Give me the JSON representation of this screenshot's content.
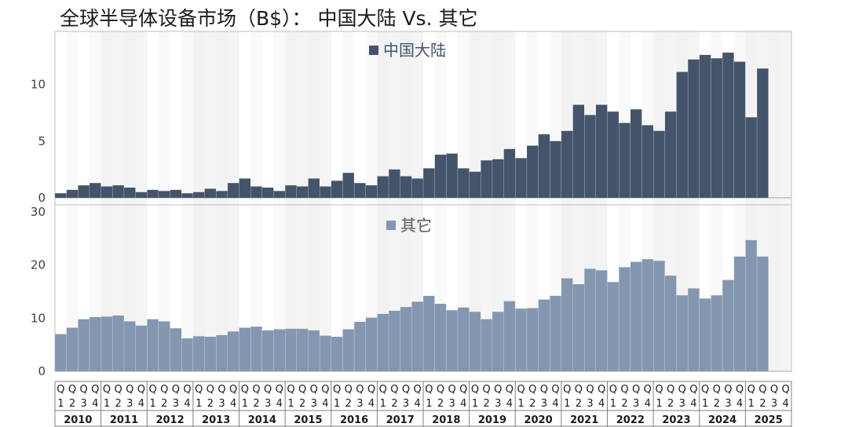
{
  "title": "全球半导体设备市场（B$）： 中国大陆 Vs. 其它",
  "chart_data": [
    {
      "type": "bar",
      "title": "",
      "legend": "中国大陆",
      "legend_position": "top-center",
      "color": "#44546a",
      "ylim": [
        0,
        14
      ],
      "yticks": [
        0,
        5,
        10
      ],
      "values": [
        0.4,
        0.7,
        1.1,
        1.3,
        1.0,
        1.1,
        0.9,
        0.5,
        0.7,
        0.6,
        0.7,
        0.4,
        0.5,
        0.8,
        0.6,
        1.3,
        1.7,
        1.0,
        0.9,
        0.6,
        1.1,
        1.0,
        1.7,
        1.0,
        1.5,
        2.2,
        1.3,
        1.1,
        1.9,
        2.5,
        1.9,
        1.7,
        2.6,
        3.8,
        3.9,
        2.6,
        2.3,
        3.3,
        3.4,
        4.3,
        3.5,
        4.6,
        5.6,
        5.0,
        5.9,
        8.2,
        7.3,
        8.2,
        7.6,
        6.6,
        7.8,
        6.4,
        5.9,
        7.6,
        11.1,
        12.2,
        12.6,
        12.3,
        12.8,
        12.0,
        7.1,
        11.4
      ]
    },
    {
      "type": "bar",
      "title": "",
      "legend": "其它",
      "legend_position": "top-center",
      "color": "#8497b0",
      "ylim": [
        0,
        30
      ],
      "yticks": [
        0,
        10,
        20,
        30
      ],
      "values": [
        7.0,
        8.2,
        9.8,
        10.2,
        10.3,
        10.5,
        9.4,
        8.6,
        9.8,
        9.4,
        8.1,
        6.2,
        6.6,
        6.5,
        6.8,
        7.5,
        8.2,
        8.4,
        7.7,
        7.9,
        8.0,
        8.0,
        7.7,
        6.7,
        6.5,
        7.9,
        9.3,
        10.1,
        10.8,
        11.4,
        12.1,
        13.1,
        14.2,
        12.7,
        11.5,
        12.0,
        11.2,
        9.8,
        11.2,
        13.2,
        11.8,
        11.9,
        13.5,
        14.2,
        17.5,
        16.4,
        19.3,
        19.0,
        16.8,
        19.6,
        20.6,
        21.1,
        20.8,
        18.0,
        14.3,
        15.6,
        13.7,
        14.3,
        17.2,
        21.6,
        24.7,
        21.6
      ]
    }
  ],
  "x_axis": {
    "quarter_top": [
      "Q",
      "Q",
      "Q",
      "Q"
    ],
    "quarter_bottom": [
      "1",
      "2",
      "3",
      "4"
    ],
    "years": [
      "2010",
      "2011",
      "2012",
      "2013",
      "2014",
      "2015",
      "2016",
      "2017",
      "2018",
      "2019",
      "2020",
      "2021",
      "2022",
      "2023",
      "2024",
      "2025"
    ]
  },
  "band_color": "#f2f2f2"
}
